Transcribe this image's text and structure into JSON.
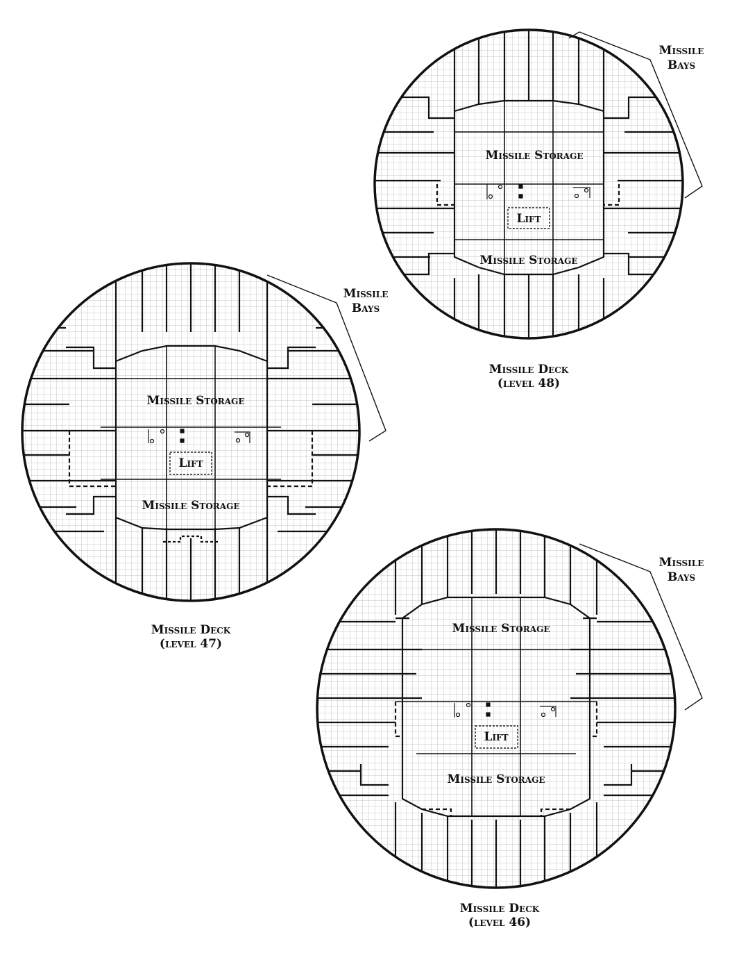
{
  "page": {
    "background": "#ffffff",
    "ink": "#111111",
    "grid_color": "#b5b5b5"
  },
  "decks": [
    {
      "id": "level-48",
      "title": "Missile Deck",
      "level": "(level 48)",
      "storage_top": "Missile Storage",
      "storage_bottom": "Missile Storage",
      "lift": "Lift",
      "bays_label": [
        "Missile",
        "Bays"
      ]
    },
    {
      "id": "level-47",
      "title": "Missile Deck",
      "level": "(level 47)",
      "storage_top": "Missile Storage",
      "storage_bottom": "Missile Storage",
      "lift": "Lift",
      "bays_label": [
        "Missile",
        "Bays"
      ]
    },
    {
      "id": "level-46",
      "title": "Missile Deck",
      "level": "(level 46)",
      "storage_top": "Missile Storage",
      "storage_bottom": "Missile Storage",
      "lift": "Lift",
      "bays_label": [
        "Missile",
        "Bays"
      ]
    }
  ]
}
